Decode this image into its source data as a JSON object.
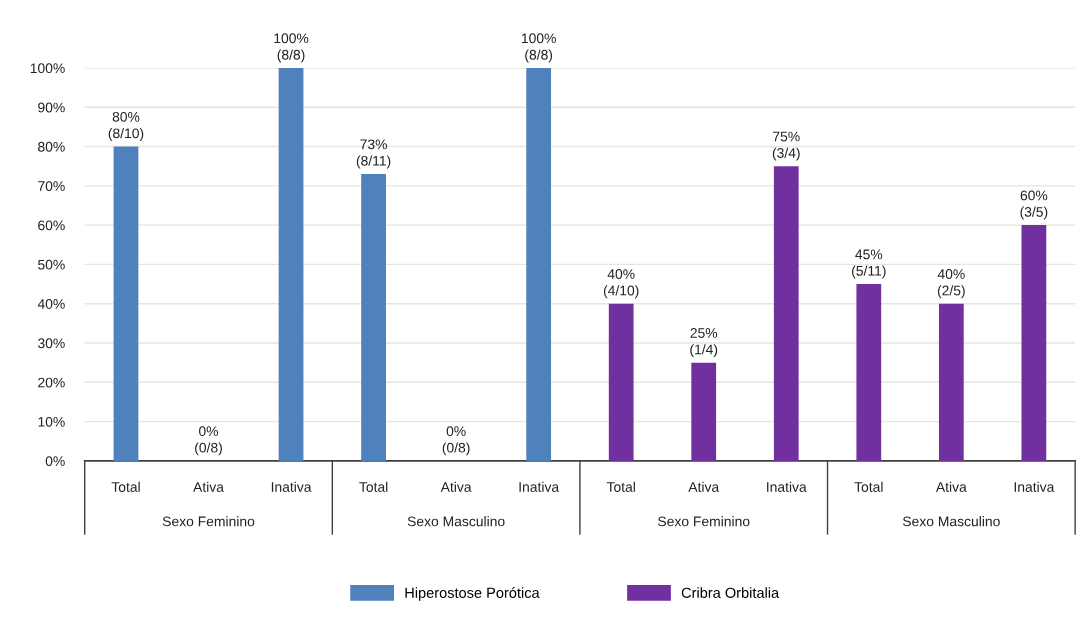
{
  "chart_data": {
    "type": "bar",
    "categories": [
      "Total",
      "Ativa",
      "Inativa",
      "Total",
      "Ativa",
      "Inativa",
      "Total",
      "Ativa",
      "Inativa",
      "Total",
      "Ativa",
      "Inativa"
    ],
    "annotations": [
      "Sexo Feminino",
      "Sexo Masculino",
      "Sexo Feminino",
      "Sexo Masculino"
    ],
    "series": [
      {
        "name": "Hiperostose Porótica",
        "color": "#4f81bd",
        "values": [
          80,
          0,
          100,
          73,
          0,
          100,
          null,
          null,
          null,
          null,
          null,
          null
        ],
        "value_labels": [
          "80%\n(8/10)",
          "0%\n(0/8)",
          "100%\n(8/8)",
          "73%\n(8/11)",
          "0%\n(0/8)",
          "100%\n(8/8)",
          null,
          null,
          null,
          null,
          null,
          null
        ]
      },
      {
        "name": "Cribra Orbitalia",
        "color": "#7030a0",
        "values": [
          null,
          null,
          null,
          null,
          null,
          null,
          40,
          25,
          75,
          45,
          40,
          60
        ],
        "value_labels": [
          null,
          null,
          null,
          null,
          null,
          null,
          "40%\n(4/10)",
          "25%\n(1/4)",
          "75%\n(3/4)",
          "45%\n(5/11)",
          "40%\n(2/5)",
          "60%\n(3/5)"
        ]
      }
    ],
    "ylim": [
      0,
      100
    ],
    "yticks": [
      {
        "value": 0,
        "label": "0%"
      },
      {
        "value": 10,
        "label": "10%"
      },
      {
        "value": 20,
        "label": "20%"
      },
      {
        "value": 30,
        "label": "30%"
      },
      {
        "value": 40,
        "label": "40%"
      },
      {
        "value": 50,
        "label": "50%"
      },
      {
        "value": 60,
        "label": "60%"
      },
      {
        "value": 70,
        "label": "70%"
      },
      {
        "value": 80,
        "label": "80%"
      },
      {
        "value": 90,
        "label": "90%"
      },
      {
        "value": 100,
        "label": "100%"
      }
    ],
    "grid": "y",
    "legend": "bottom"
  }
}
